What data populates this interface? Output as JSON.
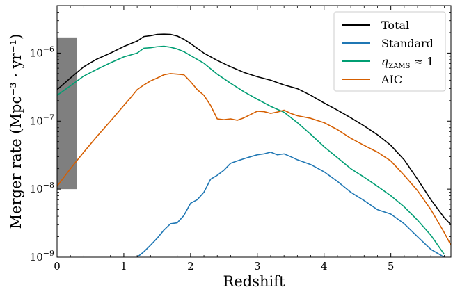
{
  "chart_data": {
    "type": "line",
    "xlabel": "Redshift",
    "ylabel": "Merger rate (Mpc⁻³ · yr⁻¹)",
    "yscale": "log",
    "xlim": [
      0,
      5.9
    ],
    "ylim": [
      1e-09,
      5e-06
    ],
    "x_ticks": [
      0,
      1,
      2,
      3,
      4,
      5
    ],
    "x_tick_labels": [
      "0",
      "1",
      "2",
      "3",
      "4",
      "5"
    ],
    "y_ticks": [
      1e-09,
      1e-08,
      1e-07,
      1e-06
    ],
    "y_tick_labels": [
      {
        "base": "10",
        "exp": "−9"
      },
      {
        "base": "10",
        "exp": "−8"
      },
      {
        "base": "10",
        "exp": "−7"
      },
      {
        "base": "10",
        "exp": "−6"
      }
    ],
    "grid": false,
    "legend_position": "top-right",
    "band": {
      "x0": 0,
      "x1": 0.3,
      "y0": 1e-08,
      "y1": 1.7e-06,
      "color": "#7f7f7f"
    },
    "series": [
      {
        "name": "Total",
        "color": "#000000",
        "x": [
          0,
          0.2,
          0.4,
          0.5,
          0.6,
          0.8,
          1.0,
          1.2,
          1.3,
          1.4,
          1.5,
          1.6,
          1.7,
          1.8,
          1.9,
          2.0,
          2.2,
          2.4,
          2.6,
          2.8,
          3.0,
          3.2,
          3.4,
          3.6,
          3.8,
          4.0,
          4.2,
          4.4,
          4.6,
          4.8,
          5.0,
          5.2,
          5.4,
          5.6,
          5.8,
          5.9
        ],
        "y": [
          2.9e-07,
          4.3e-07,
          6.3e-07,
          7.2e-07,
          8.2e-07,
          1e-06,
          1.25e-06,
          1.5e-06,
          1.75e-06,
          1.8e-06,
          1.88e-06,
          1.9e-06,
          1.88e-06,
          1.78e-06,
          1.6e-06,
          1.38e-06,
          1e-06,
          7.8e-07,
          6.3e-07,
          5.2e-07,
          4.5e-07,
          4e-07,
          3.4e-07,
          3e-07,
          2.4e-07,
          1.85e-07,
          1.45e-07,
          1.12e-07,
          8.5e-08,
          6.3e-08,
          4.4e-08,
          2.7e-08,
          1.4e-08,
          7e-09,
          3.8e-09,
          3e-09
        ]
      },
      {
        "name": "Standard",
        "color": "#1f77b4",
        "x": [
          1.2,
          1.3,
          1.4,
          1.5,
          1.6,
          1.7,
          1.8,
          1.9,
          2.0,
          2.1,
          2.2,
          2.3,
          2.4,
          2.5,
          2.6,
          2.7,
          2.8,
          2.9,
          3.0,
          3.1,
          3.2,
          3.3,
          3.4,
          3.5,
          3.6,
          3.8,
          4.0,
          4.2,
          4.4,
          4.6,
          4.8,
          5.0,
          5.2,
          5.4,
          5.6,
          5.8
        ],
        "y": [
          1e-09,
          1.2e-09,
          1.5e-09,
          1.9e-09,
          2.5e-09,
          3.1e-09,
          3.2e-09,
          4.1e-09,
          6.2e-09,
          7e-09,
          9e-09,
          1.4e-08,
          1.6e-08,
          1.9e-08,
          2.4e-08,
          2.6e-08,
          2.8e-08,
          3e-08,
          3.2e-08,
          3.3e-08,
          3.5e-08,
          3.2e-08,
          3.3e-08,
          3e-08,
          2.7e-08,
          2.3e-08,
          1.8e-08,
          1.3e-08,
          9e-09,
          6.8e-09,
          5e-09,
          4.3e-09,
          3.1e-09,
          2e-09,
          1.3e-09,
          1e-09
        ]
      },
      {
        "name": "q_ZAMS ≈ 1",
        "name_main": "q",
        "name_sub": "ZAMS",
        "name_rest": " ≈ 1",
        "color": "#009e73",
        "x": [
          0,
          0.2,
          0.4,
          0.6,
          0.8,
          1.0,
          1.2,
          1.3,
          1.4,
          1.5,
          1.6,
          1.7,
          1.8,
          1.9,
          2.0,
          2.2,
          2.4,
          2.6,
          2.8,
          3.0,
          3.2,
          3.4,
          3.6,
          3.8,
          4.0,
          4.2,
          4.4,
          4.6,
          4.8,
          5.0,
          5.2,
          5.4,
          5.6,
          5.8
        ],
        "y": [
          2.4e-07,
          3.3e-07,
          4.6e-07,
          5.8e-07,
          7.2e-07,
          8.8e-07,
          1e-06,
          1.18e-06,
          1.2e-06,
          1.24e-06,
          1.26e-06,
          1.22e-06,
          1.15e-06,
          1.05e-06,
          9.2e-07,
          7.1e-07,
          4.9e-07,
          3.6e-07,
          2.7e-07,
          2.1e-07,
          1.65e-07,
          1.35e-07,
          9.5e-08,
          6.4e-08,
          4.2e-08,
          2.9e-08,
          2e-08,
          1.5e-08,
          1.1e-08,
          8e-09,
          5.5e-09,
          3.5e-09,
          2.1e-09,
          1.1e-09
        ]
      },
      {
        "name": "AIC",
        "color": "#d55e00",
        "x": [
          0,
          0.2,
          0.4,
          0.6,
          0.8,
          1.0,
          1.1,
          1.2,
          1.3,
          1.4,
          1.5,
          1.6,
          1.7,
          1.8,
          1.9,
          2.0,
          2.1,
          2.2,
          2.3,
          2.4,
          2.5,
          2.6,
          2.7,
          2.8,
          3.0,
          3.1,
          3.2,
          3.3,
          3.4,
          3.5,
          3.6,
          3.8,
          4.0,
          4.2,
          4.4,
          4.6,
          4.8,
          5.0,
          5.2,
          5.4,
          5.6,
          5.8,
          5.9
        ],
        "y": [
          1.1e-08,
          2e-08,
          3.5e-08,
          6e-08,
          1e-07,
          1.7e-07,
          2.2e-07,
          2.9e-07,
          3.4e-07,
          3.9e-07,
          4.3e-07,
          4.8e-07,
          5e-07,
          4.9e-07,
          4.8e-07,
          3.8e-07,
          2.9e-07,
          2.4e-07,
          1.7e-07,
          1.08e-07,
          1.05e-07,
          1.08e-07,
          1.03e-07,
          1.12e-07,
          1.4e-07,
          1.38e-07,
          1.3e-07,
          1.36e-07,
          1.45e-07,
          1.3e-07,
          1.2e-07,
          1.1e-07,
          9.5e-08,
          7.5e-08,
          5.6e-08,
          4.4e-08,
          3.5e-08,
          2.6e-08,
          1.6e-08,
          9.5e-09,
          5e-09,
          2.3e-09,
          1.5e-09
        ]
      }
    ]
  }
}
